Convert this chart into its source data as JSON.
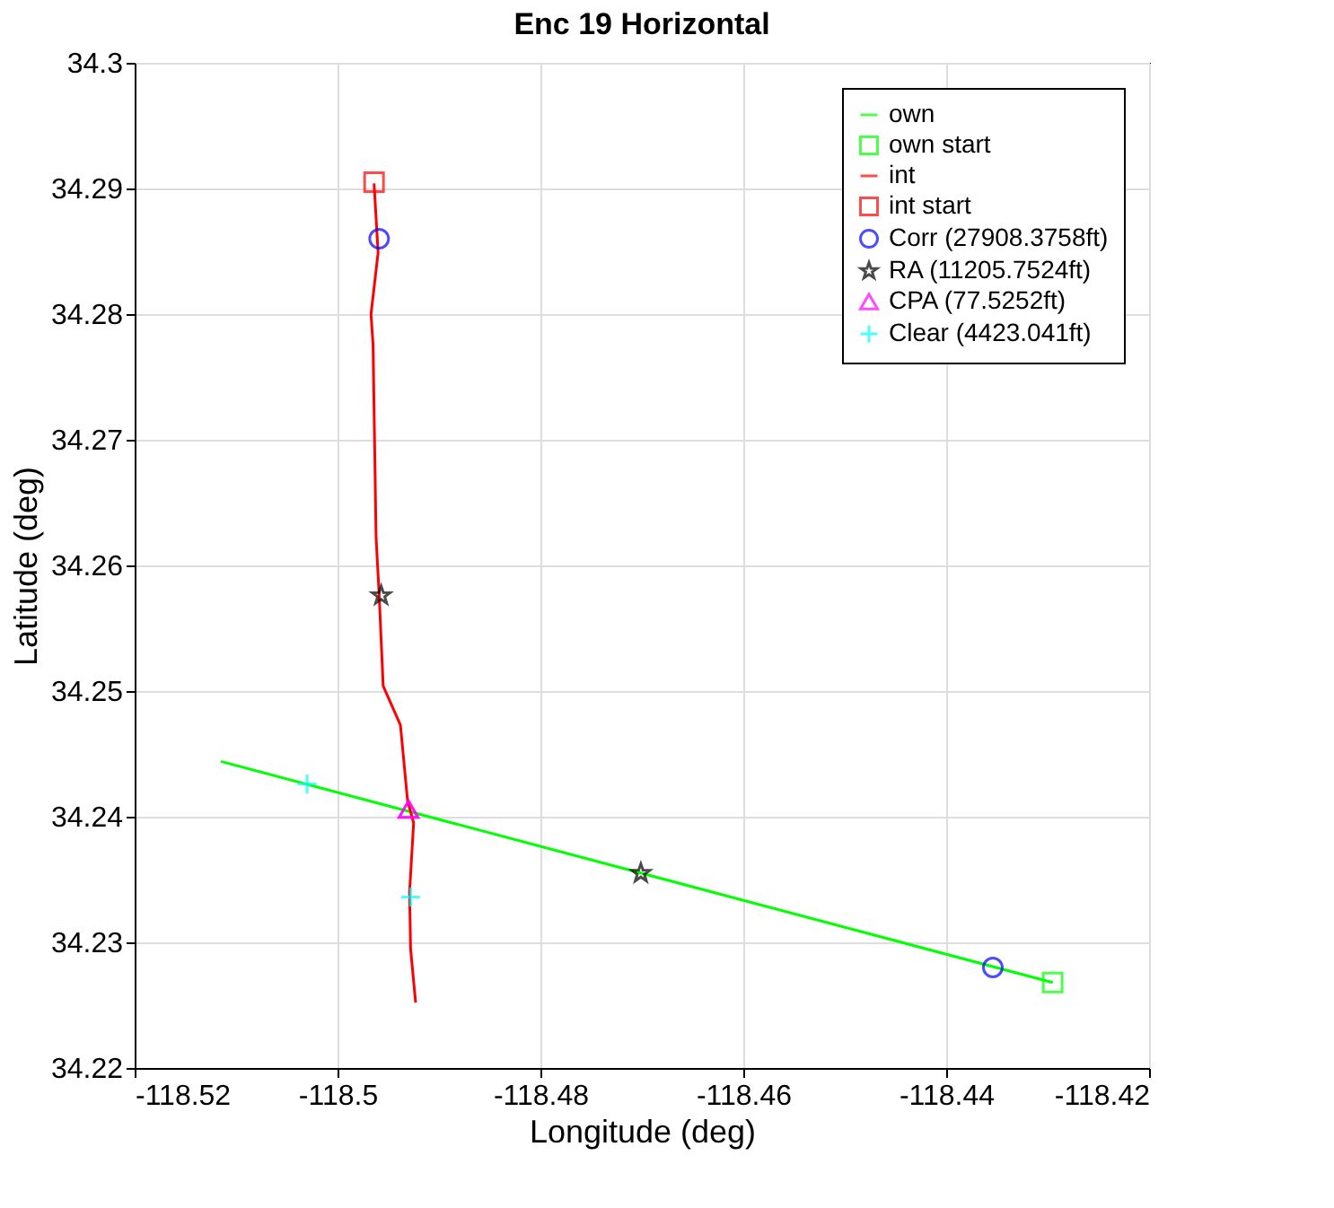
{
  "chart_data": {
    "type": "line",
    "title": "Enc 19 Horizontal",
    "xlabel": "Longitude (deg)",
    "ylabel": "Latitude (deg)",
    "xlim": [
      -118.52,
      -118.42
    ],
    "xticks": [
      -118.52,
      -118.5,
      -118.48,
      -118.46,
      -118.44,
      -118.42
    ],
    "ylim": [
      34.22,
      34.3
    ],
    "yticks": [
      34.22,
      34.23,
      34.24,
      34.25,
      34.26,
      34.27,
      34.28,
      34.29,
      34.3
    ],
    "grid": true,
    "legend": "top right",
    "series": [
      {
        "name": "own",
        "type": "line",
        "marker": "none",
        "color": "#00ff00",
        "x": [
          -118.4295,
          -118.5115
        ],
        "values": [
          34.2268,
          34.2444
        ]
      },
      {
        "name": "own start",
        "type": "scatter",
        "marker": "square",
        "color": "#00ff00",
        "x": [
          -118.4295
        ],
        "values": [
          34.2268
        ]
      },
      {
        "name": "int",
        "type": "line",
        "marker": "none",
        "color": "#ff0000",
        "x": [
          -118.4964,
          -118.496,
          -118.4967,
          -118.4965,
          -118.4962,
          -118.4959,
          -118.4955,
          -118.4938,
          -118.4931,
          -118.4925,
          -118.4929,
          -118.4928,
          -118.4923
        ],
        "values": [
          34.2904,
          34.2849,
          34.28,
          34.2776,
          34.2622,
          34.2577,
          34.2504,
          34.2473,
          34.2413,
          34.2395,
          34.234,
          34.2295,
          34.2252
        ]
      },
      {
        "name": "int start",
        "type": "scatter",
        "marker": "square",
        "color": "#ff0000",
        "x": [
          -118.4964
        ],
        "values": [
          34.2905
        ]
      },
      {
        "name": "Corr (27908.3758ft)",
        "type": "scatter",
        "marker": "circle",
        "color": "#0000ff",
        "x": [
          -118.4354,
          -118.4959
        ],
        "values": [
          34.228,
          34.286
        ]
      },
      {
        "name": "RA (11205.7524ft)",
        "type": "scatter",
        "marker": "star",
        "color": "#000000",
        "x": [
          -118.4701,
          -118.4957
        ],
        "values": [
          34.2355,
          34.2576
        ]
      },
      {
        "name": "CPA (77.5252ft)",
        "type": "scatter",
        "marker": "triangle",
        "color": "#ff00ff",
        "x": [
          -118.493,
          -118.493
        ],
        "values": [
          34.2406,
          34.2406
        ]
      },
      {
        "name": "Clear (4423.041ft)",
        "type": "scatter",
        "marker": "cross",
        "color": "#00ffff",
        "x": [
          -118.503,
          -118.4928
        ],
        "values": [
          34.2426,
          34.2336
        ]
      }
    ]
  }
}
